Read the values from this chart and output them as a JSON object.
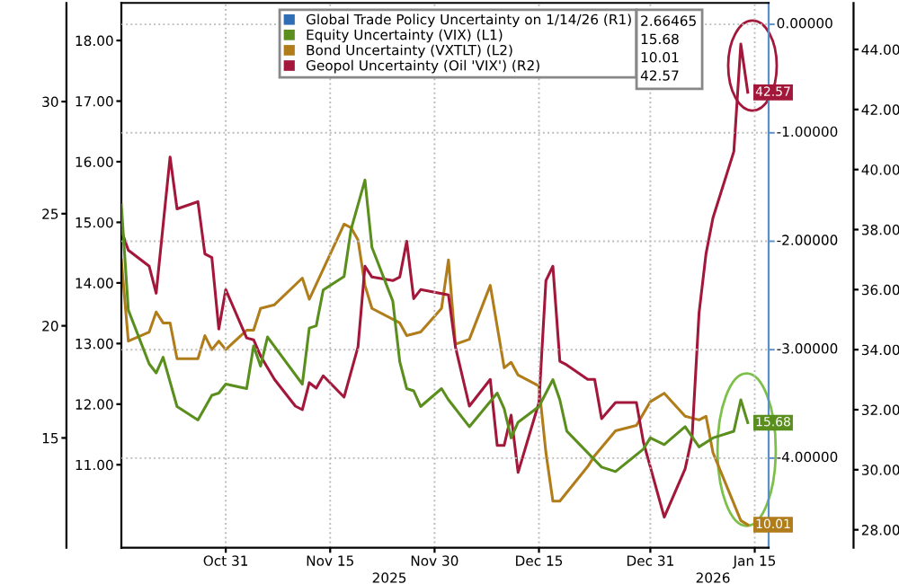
{
  "chart_data": {
    "type": "line",
    "legend": "top",
    "grid": true,
    "xlim": [
      "2025-10-16",
      "2026-01-17"
    ],
    "xticks": [
      {
        "value": "2025-10-31",
        "label": "Oct 31"
      },
      {
        "value": "2025-11-15",
        "label": "Nov 15"
      },
      {
        "value": "2025-11-30",
        "label": "Nov 30"
      },
      {
        "value": "2025-12-15",
        "label": "Dec 15"
      },
      {
        "value": "2025-12-31",
        "label": "Dec 31"
      },
      {
        "value": "2026-01-15",
        "label": "Jan 15"
      }
    ],
    "ylim": [
      10.1,
      34.4
    ],
    "yticks": [
      15,
      20,
      25,
      30
    ],
    "y2lim": [
      9.63,
      18.62
    ],
    "y2ticks": [
      {
        "value": 11,
        "label": "11.00"
      },
      {
        "value": 12,
        "label": "12.00"
      },
      {
        "value": 13,
        "label": "13.00"
      },
      {
        "value": 14,
        "label": "14.00"
      },
      {
        "value": 15,
        "label": "15.00"
      },
      {
        "value": 16,
        "label": "16.00"
      },
      {
        "value": 17,
        "label": "17.00"
      },
      {
        "value": 18,
        "label": "18.00"
      }
    ],
    "y3lim": [
      27.4,
      45.55
    ],
    "y3ticks": [
      {
        "value": 28,
        "label": "28.00"
      },
      {
        "value": 30,
        "label": "30.00"
      },
      {
        "value": 32,
        "label": "32.00"
      },
      {
        "value": 34,
        "label": "34.00"
      },
      {
        "value": 36,
        "label": "36.00"
      },
      {
        "value": 38,
        "label": "38.00"
      },
      {
        "value": 40,
        "label": "40.00"
      },
      {
        "value": 42,
        "label": "42.00"
      },
      {
        "value": 44,
        "label": "44.00"
      }
    ],
    "annotations": [
      "0.00000",
      "-1.00000",
      "-2.00000",
      "-3.00000",
      "-4.00000",
      "2025",
      "2026"
    ],
    "series": [
      {
        "name": "Global Trade Policy Uncertainty on 1/14/26 (R1)",
        "color": "#2f6db5",
        "values": [
          null
        ],
        "value_labels": [
          "2.66465"
        ]
      },
      {
        "name": "Equity Uncertainty (VIX) (L1)",
        "color": "#5a8f1e",
        "axis": "y",
        "x": [
          "2025-10-16",
          "2025-10-17",
          "2025-10-20",
          "2025-10-21",
          "2025-10-22",
          "2025-10-24",
          "2025-10-27",
          "2025-10-29",
          "2025-10-30",
          "2025-10-31",
          "2025-11-03",
          "2025-11-04",
          "2025-11-05",
          "2025-11-06",
          "2025-11-11",
          "2025-11-12",
          "2025-11-13",
          "2025-11-14",
          "2025-11-17",
          "2025-11-18",
          "2025-11-20",
          "2025-11-21",
          "2025-11-24",
          "2025-11-25",
          "2025-11-26",
          "2025-11-27",
          "2025-11-28",
          "2025-12-01",
          "2025-12-02",
          "2025-12-05",
          "2025-12-09",
          "2025-12-10",
          "2025-12-11",
          "2025-12-12",
          "2025-12-15",
          "2025-12-17",
          "2025-12-18",
          "2025-12-19",
          "2025-12-24",
          "2025-12-26",
          "2025-12-30",
          "2025-12-31",
          "2026-01-02",
          "2026-01-05",
          "2026-01-07",
          "2026-01-09",
          "2026-01-12",
          "2026-01-13",
          "2026-01-14"
        ],
        "values": [
          25.4,
          20.7,
          18.3,
          17.9,
          18.6,
          16.4,
          15.8,
          16.9,
          17.0,
          17.4,
          17.2,
          19.1,
          18.2,
          19.5,
          17.4,
          19.9,
          20.0,
          21.6,
          22.2,
          24.3,
          26.5,
          23.5,
          21.1,
          18.4,
          17.2,
          17.1,
          16.4,
          17.2,
          16.7,
          15.5,
          17.0,
          16.3,
          15.0,
          15.7,
          16.4,
          17.6,
          16.7,
          15.3,
          13.7,
          13.5,
          14.5,
          15.0,
          14.7,
          15.5,
          14.6,
          15.0,
          15.3,
          16.7,
          15.68
        ],
        "value_labels": [
          null,
          null,
          null,
          null,
          null,
          null,
          null,
          null,
          null,
          null,
          null,
          null,
          null,
          null,
          null,
          null,
          null,
          null,
          null,
          null,
          null,
          null,
          null,
          null,
          null,
          null,
          null,
          null,
          null,
          null,
          null,
          null,
          null,
          null,
          null,
          null,
          null,
          null,
          null,
          null,
          null,
          null,
          null,
          null,
          null,
          null,
          null,
          null,
          "15.68"
        ]
      },
      {
        "name": "Bond Uncertainty (VXTLT) (L2)",
        "color": "#b07d1a",
        "axis": "y2",
        "x": [
          "2025-10-16",
          "2025-10-17",
          "2025-10-20",
          "2025-10-21",
          "2025-10-22",
          "2025-10-23",
          "2025-10-24",
          "2025-10-27",
          "2025-10-28",
          "2025-10-29",
          "2025-10-30",
          "2025-10-31",
          "2025-11-03",
          "2025-11-04",
          "2025-11-05",
          "2025-11-07",
          "2025-11-11",
          "2025-11-12",
          "2025-11-17",
          "2025-11-18",
          "2025-11-19",
          "2025-11-20",
          "2025-11-21",
          "2025-11-25",
          "2025-11-26",
          "2025-11-28",
          "2025-12-01",
          "2025-12-02",
          "2025-12-03",
          "2025-12-05",
          "2025-12-08",
          "2025-12-10",
          "2025-12-11",
          "2025-12-12",
          "2025-12-15",
          "2025-12-16",
          "2025-12-17",
          "2025-12-18",
          "2025-12-22",
          "2025-12-23",
          "2025-12-26",
          "2025-12-29",
          "2025-12-31",
          "2026-01-02",
          "2026-01-05",
          "2026-01-07",
          "2026-01-08",
          "2026-01-09",
          "2026-01-13",
          "2026-01-14"
        ],
        "values": [
          14.38,
          13.04,
          13.19,
          13.52,
          13.34,
          13.34,
          12.75,
          12.75,
          13.13,
          12.9,
          13.04,
          12.9,
          13.22,
          13.22,
          13.58,
          13.64,
          14.08,
          13.73,
          14.97,
          14.91,
          14.71,
          13.96,
          13.58,
          13.34,
          13.13,
          13.19,
          13.58,
          14.38,
          12.99,
          13.07,
          13.96,
          12.6,
          12.69,
          12.48,
          12.3,
          11.2,
          10.4,
          10.4,
          10.97,
          11.15,
          11.56,
          11.65,
          12.04,
          12.18,
          11.8,
          11.74,
          11.8,
          11.2,
          10.08,
          10.01
        ],
        "value_labels": [
          null,
          null,
          null,
          null,
          null,
          null,
          null,
          null,
          null,
          null,
          null,
          null,
          null,
          null,
          null,
          null,
          null,
          null,
          null,
          null,
          null,
          null,
          null,
          null,
          null,
          null,
          null,
          null,
          null,
          null,
          null,
          null,
          null,
          null,
          null,
          null,
          null,
          null,
          null,
          null,
          null,
          null,
          null,
          null,
          null,
          null,
          null,
          null,
          null,
          "10.01"
        ]
      },
      {
        "name": "Geopol Uncertainty (Oil 'VIX') (R2)",
        "color": "#a3173a",
        "axis": "y3",
        "x": [
          "2025-10-16",
          "2025-10-17",
          "2025-10-20",
          "2025-10-21",
          "2025-10-23",
          "2025-10-24",
          "2025-10-27",
          "2025-10-28",
          "2025-10-29",
          "2025-10-30",
          "2025-10-31",
          "2025-11-03",
          "2025-11-04",
          "2025-11-05",
          "2025-11-07",
          "2025-11-10",
          "2025-11-11",
          "2025-11-12",
          "2025-11-13",
          "2025-11-14",
          "2025-11-17",
          "2025-11-19",
          "2025-11-20",
          "2025-11-21",
          "2025-11-24",
          "2025-11-25",
          "2025-11-26",
          "2025-11-27",
          "2025-11-28",
          "2025-12-02",
          "2025-12-03",
          "2025-12-05",
          "2025-12-08",
          "2025-12-09",
          "2025-12-10",
          "2025-12-11",
          "2025-12-12",
          "2025-12-15",
          "2025-12-16",
          "2025-12-17",
          "2025-12-18",
          "2025-12-19",
          "2025-12-22",
          "2025-12-23",
          "2025-12-24",
          "2025-12-26",
          "2025-12-29",
          "2025-12-30",
          "2026-01-02",
          "2026-01-05",
          "2026-01-06",
          "2026-01-07",
          "2026-01-08",
          "2026-01-09",
          "2026-01-12",
          "2026-01-13",
          "2026-01-14"
        ],
        "values": [
          37.97,
          37.31,
          36.78,
          35.88,
          40.42,
          38.69,
          38.93,
          37.19,
          37.07,
          34.69,
          36.0,
          34.39,
          34.33,
          33.79,
          33.01,
          32.12,
          32.0,
          32.9,
          32.72,
          33.13,
          32.42,
          34.09,
          36.78,
          36.42,
          36.3,
          36.42,
          37.61,
          35.7,
          36.0,
          35.82,
          34.09,
          32.12,
          33.01,
          30.81,
          30.81,
          31.82,
          29.91,
          32.24,
          36.3,
          36.78,
          33.61,
          33.49,
          33.01,
          33.01,
          31.7,
          32.24,
          32.24,
          30.93,
          28.42,
          30.03,
          31.1,
          35.22,
          37.19,
          38.39,
          40.6,
          44.18,
          42.57
        ],
        "value_labels": [
          null,
          null,
          null,
          null,
          null,
          null,
          null,
          null,
          null,
          null,
          null,
          null,
          null,
          null,
          null,
          null,
          null,
          null,
          null,
          null,
          null,
          null,
          null,
          null,
          null,
          null,
          null,
          null,
          null,
          null,
          null,
          null,
          null,
          null,
          null,
          null,
          null,
          null,
          null,
          null,
          null,
          null,
          null,
          null,
          null,
          null,
          null,
          null,
          null,
          null,
          null,
          null,
          null,
          null,
          null,
          null,
          "42.57"
        ]
      }
    ]
  }
}
